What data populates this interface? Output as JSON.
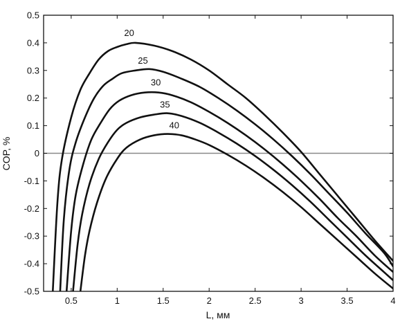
{
  "chart_data": {
    "type": "line",
    "title": "",
    "xlabel": "L, мм",
    "ylabel": "COP, %",
    "xlim": [
      0.2,
      4.0
    ],
    "ylim": [
      -0.5,
      0.5
    ],
    "x_ticks": [
      0.5,
      1,
      1.5,
      2,
      2.5,
      3,
      3.5,
      4
    ],
    "x_tick_labels": [
      "0.5",
      "1",
      "1.5",
      "2",
      "2.5",
      "3",
      "3.5",
      "4"
    ],
    "y_ticks": [
      0.5,
      0.4,
      0.3,
      0.2,
      0.1,
      0,
      -0.1,
      -0.2,
      -0.3,
      -0.4,
      -0.5
    ],
    "y_tick_labels": [
      "0.5",
      "0.4",
      "0.3",
      "0.2",
      "0.1",
      "0",
      "-0.1",
      "-0.2",
      "-0.3",
      "-0.4",
      "-0.5"
    ],
    "grid": false,
    "legend": "none",
    "reference_line": {
      "y": 0,
      "color": "#888888"
    },
    "colors": {
      "series": "#111111",
      "axis": "#111111"
    },
    "series": [
      {
        "name": "20",
        "points": [
          [
            0.3,
            -0.5
          ],
          [
            0.35,
            -0.18
          ],
          [
            0.4,
            -0.02
          ],
          [
            0.5,
            0.13
          ],
          [
            0.6,
            0.23
          ],
          [
            0.7,
            0.29
          ],
          [
            0.8,
            0.34
          ],
          [
            0.9,
            0.37
          ],
          [
            1.0,
            0.385
          ],
          [
            1.1,
            0.395
          ],
          [
            1.2,
            0.4
          ],
          [
            1.4,
            0.39
          ],
          [
            1.6,
            0.37
          ],
          [
            1.8,
            0.34
          ],
          [
            2.0,
            0.3
          ],
          [
            2.2,
            0.25
          ],
          [
            2.4,
            0.2
          ],
          [
            2.6,
            0.14
          ],
          [
            2.8,
            0.075
          ],
          [
            3.0,
            0.005
          ],
          [
            3.2,
            -0.075
          ],
          [
            3.4,
            -0.155
          ],
          [
            3.6,
            -0.235
          ],
          [
            3.8,
            -0.315
          ],
          [
            4.0,
            -0.39
          ]
        ]
      },
      {
        "name": "25",
        "points": [
          [
            0.38,
            -0.5
          ],
          [
            0.42,
            -0.24
          ],
          [
            0.48,
            -0.06
          ],
          [
            0.55,
            0.04
          ],
          [
            0.65,
            0.13
          ],
          [
            0.75,
            0.2
          ],
          [
            0.85,
            0.245
          ],
          [
            0.95,
            0.27
          ],
          [
            1.05,
            0.29
          ],
          [
            1.2,
            0.3
          ],
          [
            1.35,
            0.305
          ],
          [
            1.5,
            0.295
          ],
          [
            1.7,
            0.27
          ],
          [
            1.9,
            0.24
          ],
          [
            2.1,
            0.2
          ],
          [
            2.3,
            0.155
          ],
          [
            2.5,
            0.105
          ],
          [
            2.7,
            0.05
          ],
          [
            2.9,
            -0.01
          ],
          [
            3.1,
            -0.075
          ],
          [
            3.3,
            -0.145
          ],
          [
            3.5,
            -0.215
          ],
          [
            3.7,
            -0.29
          ],
          [
            3.9,
            -0.36
          ],
          [
            4.0,
            -0.41
          ]
        ]
      },
      {
        "name": "30",
        "points": [
          [
            0.45,
            -0.5
          ],
          [
            0.5,
            -0.28
          ],
          [
            0.55,
            -0.15
          ],
          [
            0.63,
            -0.04
          ],
          [
            0.72,
            0.05
          ],
          [
            0.82,
            0.11
          ],
          [
            0.92,
            0.16
          ],
          [
            1.02,
            0.19
          ],
          [
            1.15,
            0.21
          ],
          [
            1.3,
            0.22
          ],
          [
            1.45,
            0.22
          ],
          [
            1.6,
            0.21
          ],
          [
            1.8,
            0.185
          ],
          [
            2.0,
            0.15
          ],
          [
            2.2,
            0.11
          ],
          [
            2.4,
            0.065
          ],
          [
            2.6,
            0.015
          ],
          [
            2.8,
            -0.04
          ],
          [
            3.0,
            -0.1
          ],
          [
            3.2,
            -0.165
          ],
          [
            3.4,
            -0.235
          ],
          [
            3.6,
            -0.3
          ],
          [
            3.8,
            -0.37
          ],
          [
            4.0,
            -0.43
          ]
        ]
      },
      {
        "name": "35",
        "points": [
          [
            0.52,
            -0.5
          ],
          [
            0.57,
            -0.33
          ],
          [
            0.62,
            -0.22
          ],
          [
            0.7,
            -0.11
          ],
          [
            0.8,
            -0.02
          ],
          [
            0.9,
            0.04
          ],
          [
            1.0,
            0.085
          ],
          [
            1.1,
            0.11
          ],
          [
            1.25,
            0.13
          ],
          [
            1.4,
            0.14
          ],
          [
            1.55,
            0.145
          ],
          [
            1.7,
            0.135
          ],
          [
            1.9,
            0.11
          ],
          [
            2.1,
            0.075
          ],
          [
            2.3,
            0.035
          ],
          [
            2.5,
            -0.01
          ],
          [
            2.7,
            -0.06
          ],
          [
            2.9,
            -0.115
          ],
          [
            3.1,
            -0.175
          ],
          [
            3.3,
            -0.24
          ],
          [
            3.5,
            -0.305
          ],
          [
            3.7,
            -0.37
          ],
          [
            3.9,
            -0.43
          ],
          [
            4.0,
            -0.46
          ]
        ]
      },
      {
        "name": "40",
        "points": [
          [
            0.6,
            -0.5
          ],
          [
            0.65,
            -0.37
          ],
          [
            0.7,
            -0.28
          ],
          [
            0.78,
            -0.18
          ],
          [
            0.88,
            -0.09
          ],
          [
            1.0,
            -0.02
          ],
          [
            1.1,
            0.02
          ],
          [
            1.25,
            0.05
          ],
          [
            1.4,
            0.065
          ],
          [
            1.55,
            0.07
          ],
          [
            1.7,
            0.065
          ],
          [
            1.85,
            0.05
          ],
          [
            2.0,
            0.03
          ],
          [
            2.2,
            -0.005
          ],
          [
            2.4,
            -0.045
          ],
          [
            2.6,
            -0.09
          ],
          [
            2.8,
            -0.14
          ],
          [
            3.0,
            -0.195
          ],
          [
            3.2,
            -0.255
          ],
          [
            3.4,
            -0.315
          ],
          [
            3.6,
            -0.375
          ],
          [
            3.8,
            -0.435
          ],
          [
            4.0,
            -0.49
          ]
        ]
      }
    ],
    "curve_labels": [
      {
        "text": "20",
        "x": 1.13,
        "y": 0.425
      },
      {
        "text": "25",
        "x": 1.28,
        "y": 0.325
      },
      {
        "text": "30",
        "x": 1.42,
        "y": 0.245
      },
      {
        "text": "35",
        "x": 1.52,
        "y": 0.165
      },
      {
        "text": "40",
        "x": 1.62,
        "y": 0.09
      }
    ]
  }
}
